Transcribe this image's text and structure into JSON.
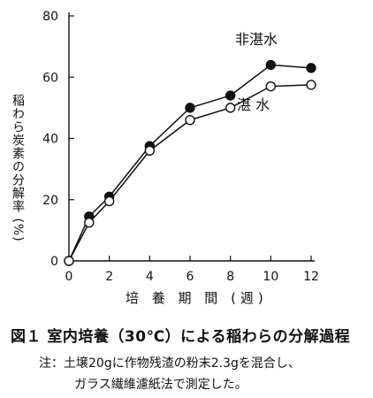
{
  "chart_data": {
    "type": "line",
    "ylabel": "稲わら炭素の分解率 (%)",
    "xlabel": "培 養 期 間 (週)",
    "x": [
      0,
      1,
      2,
      4,
      6,
      8,
      10,
      12
    ],
    "xticks": [
      0,
      2,
      4,
      6,
      8,
      10,
      12
    ],
    "yticks": [
      0,
      20,
      40,
      60,
      80
    ],
    "xlim": [
      0,
      12
    ],
    "ylim": [
      0,
      80
    ],
    "grid": false,
    "series": [
      {
        "name": "非湛水",
        "marker": "filled-circle",
        "values": [
          0,
          14.5,
          21,
          37.5,
          50,
          54,
          64,
          63
        ]
      },
      {
        "name": "湛 水",
        "marker": "open-circle",
        "values": [
          0,
          12.5,
          19.5,
          36,
          46,
          50,
          57,
          57.5
        ]
      }
    ]
  },
  "caption": "図１ 室内培養（30℃）による稲わらの分解過程",
  "note_line1": "注：土壌20gに作物残渣の粉末2.3gを混合し、",
  "note_line2": "ガラス繊維濾紙法で測定した。",
  "colors": {
    "ink": "#111111",
    "background": "#ffffff"
  }
}
